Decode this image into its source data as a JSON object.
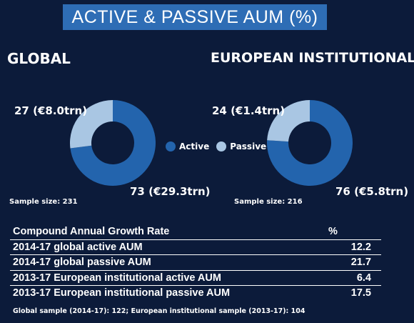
{
  "title": "ACTIVE & PASSIVE AUM (%)",
  "legend": {
    "active": "Active",
    "passive": "Passive"
  },
  "colors": {
    "background": "#0c1b3a",
    "title_bar": "#2e6db5",
    "active": "#2364ad",
    "passive": "#a9c6e3"
  },
  "chart_data": [
    {
      "type": "pie",
      "title": "GLOBAL",
      "categories": [
        "Active",
        "Passive"
      ],
      "values": [
        73,
        27
      ],
      "labels": [
        "73 (€29.3trn)",
        "27 (€8.0trn)"
      ],
      "sample": "Sample size: 231"
    },
    {
      "type": "pie",
      "title": "EUROPEAN INSTITUTIONAL",
      "categories": [
        "Active",
        "Passive"
      ],
      "values": [
        76,
        24
      ],
      "labels": [
        "76 (€5.8trn)",
        "24 (€1.4trn)"
      ],
      "sample": "Sample size: 216"
    },
    {
      "type": "table",
      "header": [
        "Compound Annual Growth Rate",
        "%"
      ],
      "rows": [
        {
          "label": "2014-17 global active AUM",
          "value": "12.2"
        },
        {
          "label": "2014-17 global passive AUM",
          "value": "21.7"
        },
        {
          "label": "2013-17 European institutional active AUM",
          "value": "6.4"
        },
        {
          "label": "2013-17 European institutional passive AUM",
          "value": "17.5"
        }
      ],
      "footnote": "Global sample (2014-17): 122; European institutional sample (2013-17): 104"
    }
  ]
}
